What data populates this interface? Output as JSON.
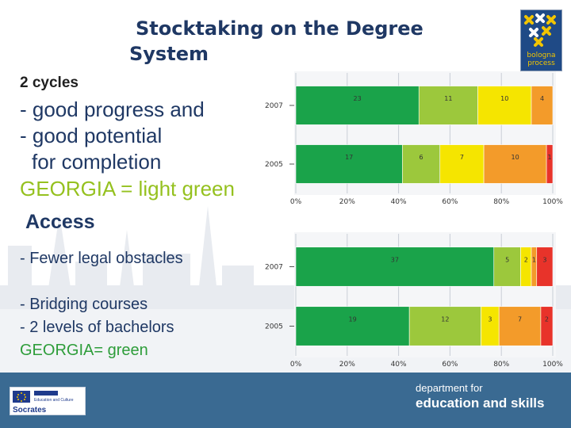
{
  "title": {
    "line1": "Stocktaking on the Degree",
    "line2": "System"
  },
  "logo": {
    "label": "bologna process"
  },
  "left_text": {
    "subtitle": "2 cycles",
    "lines": [
      "- good progress and",
      "- good potential",
      "for completion",
      "GEORGIA = light green"
    ],
    "access_heading": "Access",
    "access_lines": [
      "- Fewer legal obstacles",
      "- Bridging courses",
      "- 2 levels of bachelors",
      "GEORGIA= green"
    ]
  },
  "colors": {
    "title": "#1f3864",
    "green": "#1aa34a",
    "light_green": "#9cc83c",
    "yellow": "#f5e500",
    "orange": "#f39b2a",
    "red": "#e8332a",
    "bottom_band": "#3a6a92",
    "georgia_light_green_text": "#95c11f",
    "georgia_green_text": "#2e9d3a"
  },
  "chart_data": [
    {
      "type": "bar",
      "orientation": "horizontal-stacked-percent",
      "categories": [
        "2007",
        "2005"
      ],
      "series": [
        {
          "color": "#1aa34a",
          "values": [
            23,
            17
          ]
        },
        {
          "color": "#9cc83c",
          "values": [
            11,
            6
          ]
        },
        {
          "color": "#f5e500",
          "values": [
            10,
            7
          ]
        },
        {
          "color": "#f39b2a",
          "values": [
            4,
            10
          ]
        },
        {
          "color": "#e8332a",
          "values": [
            0,
            1
          ]
        }
      ],
      "tick_labels": [
        "0%",
        "20%",
        "40%",
        "60%",
        "80%",
        "100%"
      ],
      "xlim": [
        0,
        100
      ]
    },
    {
      "type": "bar",
      "orientation": "horizontal-stacked-percent",
      "categories": [
        "2007",
        "2005"
      ],
      "series": [
        {
          "color": "#1aa34a",
          "values": [
            37,
            19
          ]
        },
        {
          "color": "#9cc83c",
          "values": [
            5,
            12
          ]
        },
        {
          "color": "#f5e500",
          "values": [
            2,
            3
          ]
        },
        {
          "color": "#f39b2a",
          "values": [
            1,
            7
          ]
        },
        {
          "color": "#e8332a",
          "values": [
            3,
            2
          ]
        }
      ],
      "tick_labels": [
        "0%",
        "20%",
        "40%",
        "60%",
        "80%",
        "100%"
      ],
      "xlim": [
        0,
        100
      ]
    }
  ],
  "footer": {
    "socrates": "Socrates",
    "socrates_tagline": "Education and Culture",
    "dfes_line1": "department for",
    "dfes_line2": "education and skills"
  }
}
